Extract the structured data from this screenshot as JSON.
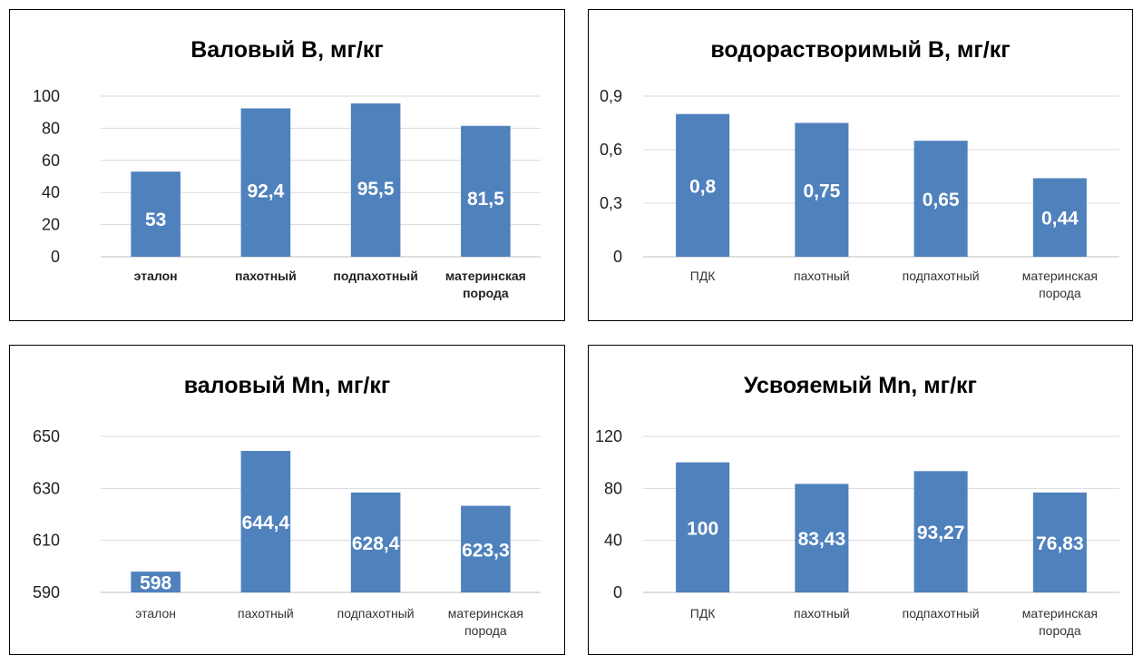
{
  "chart_data": [
    {
      "type": "bar",
      "title": "Валовый В, мг/кг",
      "categories": [
        "эталон",
        "пахотный",
        "подпахотный",
        "материнская порода"
      ],
      "values": [
        53,
        92.4,
        95.5,
        81.5
      ],
      "labels": [
        "53",
        "92,4",
        "95,5",
        "81,5"
      ],
      "yticks": [
        "0",
        "20",
        "40",
        "60",
        "80",
        "100"
      ],
      "ylim": [
        0,
        100
      ],
      "bold_categories": true,
      "label_pos": 0.55,
      "color": "#4f81bd"
    },
    {
      "type": "bar",
      "title": "водорастворимый В, мг/кг",
      "categories": [
        "ПДК",
        "пахотный",
        "подпахотный",
        "материнская порода"
      ],
      "values": [
        0.8,
        0.75,
        0.65,
        0.44
      ],
      "labels": [
        "0,8",
        "0,75",
        "0,65",
        "0,44"
      ],
      "yticks": [
        "0",
        "0,3",
        "0,6",
        "0,9"
      ],
      "ylim": [
        0,
        0.9
      ],
      "bold_categories": false,
      "label_pos": 0.5,
      "color": "#4f81bd"
    },
    {
      "type": "bar",
      "title": "валовый Mn, мг/кг",
      "categories": [
        "эталон",
        "пахотный",
        "подпахотный",
        "материнская порода"
      ],
      "values": [
        598,
        644.4,
        628.4,
        623.3
      ],
      "labels": [
        "598",
        "644,4",
        "628,4",
        "623,3"
      ],
      "yticks": [
        "590",
        "610",
        "630",
        "650"
      ],
      "ylim": [
        590,
        650
      ],
      "bold_categories": false,
      "label_pos": 0.5,
      "color": "#4f81bd"
    },
    {
      "type": "bar",
      "title": "Усвояемый Mn, мг/кг",
      "categories": [
        "ПДК",
        "пахотный",
        "подпахотный",
        "материнская порода"
      ],
      "values": [
        100,
        83.43,
        93.27,
        76.83
      ],
      "labels": [
        "100",
        "83,43",
        "93,27",
        "76,83"
      ],
      "yticks": [
        "0",
        "40",
        "80",
        "120"
      ],
      "ylim": [
        0,
        120
      ],
      "bold_categories": false,
      "label_pos": 0.5,
      "color": "#4f81bd"
    }
  ]
}
